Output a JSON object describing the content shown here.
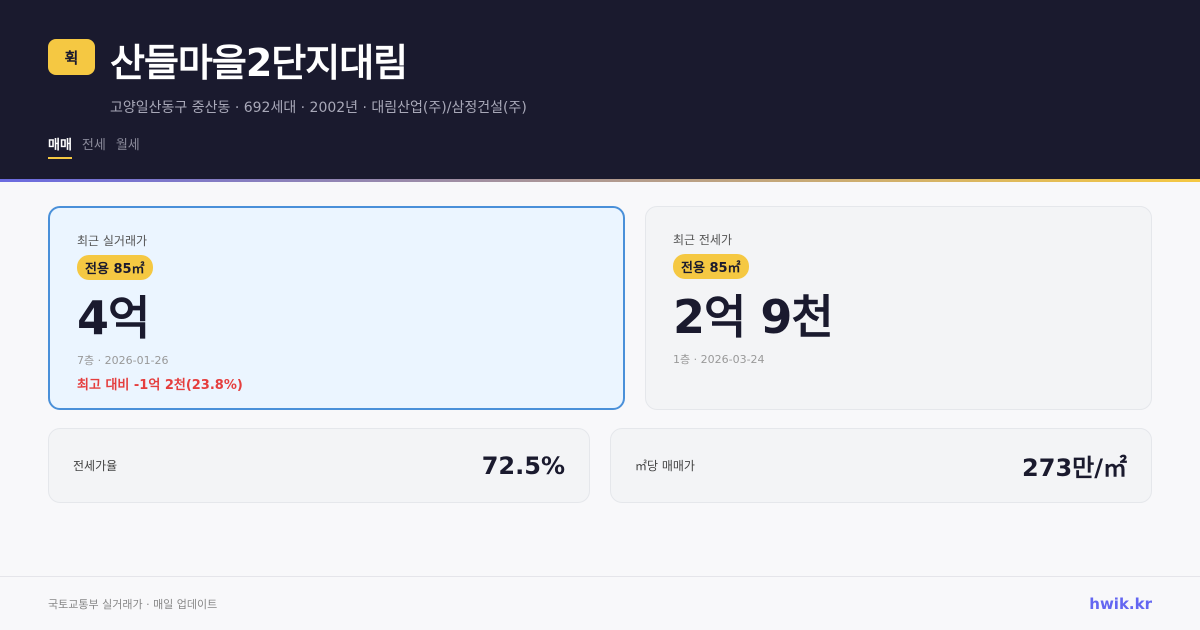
{
  "header": {
    "logo": "휙",
    "title": "산들마을2단지대림",
    "subtitle": "고양일산동구 중산동 · 692세대 · 2002년 · 대림산업(주)/삼정건설(주)",
    "tabs": [
      {
        "label": "매매",
        "active": true
      },
      {
        "label": "전세"
      },
      {
        "label": "월세"
      }
    ]
  },
  "sale": {
    "label": "최근 실거래가",
    "area": "전용 85㎡",
    "price": "4억",
    "meta": "7층 · 2026-01-26",
    "diff": "최고 대비 -1억 2천(23.8%)"
  },
  "rent": {
    "label": "최근 전세가",
    "area": "전용 85㎡",
    "price": "2억 9천",
    "meta": "1층 · 2026-03-24"
  },
  "stats": [
    {
      "label": "전세가율",
      "value": "72.5%"
    },
    {
      "label": "㎡당 매매가",
      "value": "273만/㎡"
    }
  ],
  "footer": {
    "source": "국토교통부 실거래가 · 매일 업데이트",
    "brand": "hwik.kr"
  },
  "colors": {
    "accent": "#f5c842",
    "header_bg": "#1a1a2e",
    "brand": "#6366f1",
    "negative": "#e53e3e"
  }
}
